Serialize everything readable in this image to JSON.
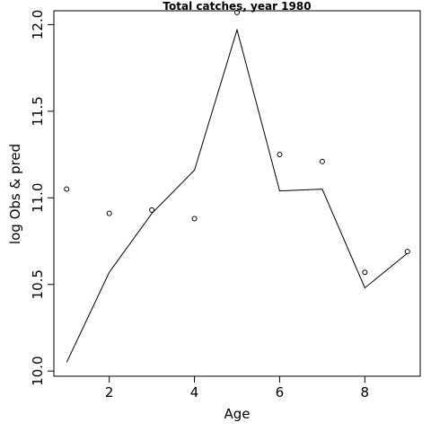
{
  "chart_data": {
    "type": "scatter",
    "title": "Total catches, year 1980",
    "xlabel": "Age",
    "ylabel": "log Obs & pred",
    "xlim": [
      0.7,
      9.3
    ],
    "ylim": [
      9.97,
      12.08
    ],
    "x_ticks": [
      2,
      4,
      6,
      8
    ],
    "y_ticks": [
      "10.0",
      "10.5",
      "11.0",
      "11.5",
      "12.0"
    ],
    "series": [
      {
        "kind": "points",
        "x": [
          1,
          2,
          3,
          4,
          5,
          6,
          7,
          8,
          9
        ],
        "values": [
          11.05,
          10.91,
          10.93,
          10.88,
          12.07,
          11.25,
          11.21,
          10.57,
          10.69
        ]
      },
      {
        "kind": "line",
        "x": [
          1,
          2,
          3,
          4,
          5,
          6,
          7,
          8,
          9
        ],
        "values": [
          10.05,
          10.57,
          10.91,
          11.16,
          11.97,
          11.04,
          11.05,
          10.48,
          10.68
        ]
      }
    ],
    "grid": false,
    "legend": "none"
  }
}
